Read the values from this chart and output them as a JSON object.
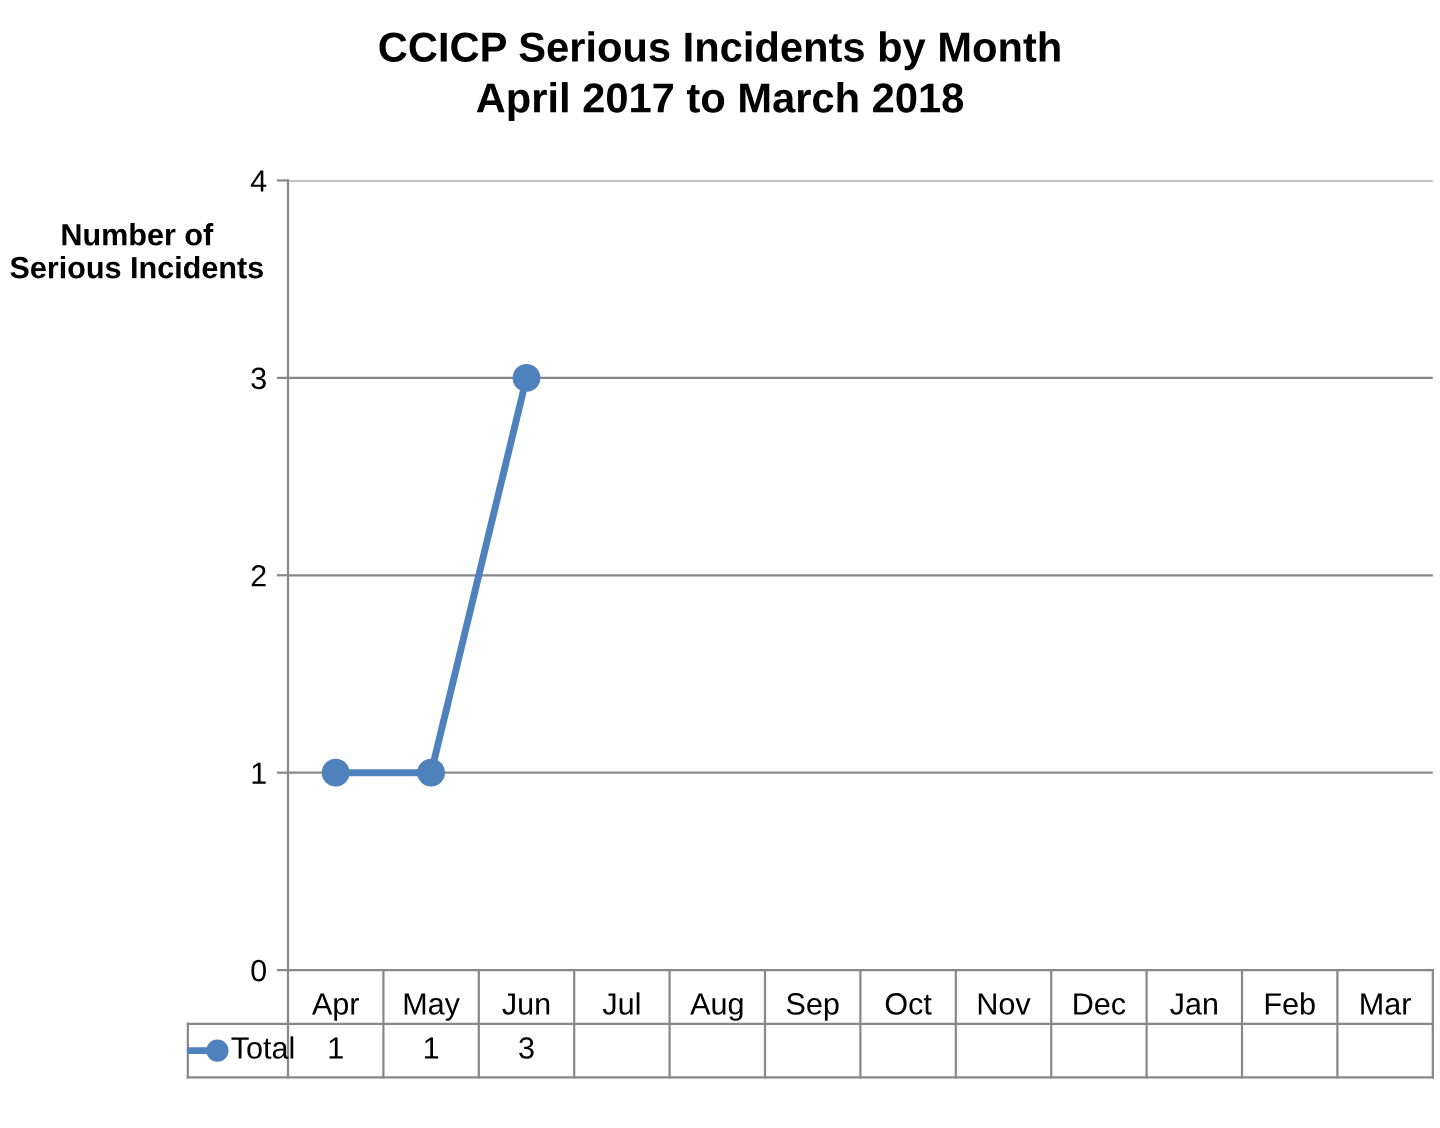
{
  "chart_data": {
    "type": "line",
    "title": "CCICP Serious Incidents by Month",
    "subtitle": "April 2017 to March 2018",
    "ylabel": "Number of\nSerious Incidents",
    "categories": [
      "Apr",
      "May",
      "Jun",
      "Jul",
      "Aug",
      "Sep",
      "Oct",
      "Nov",
      "Dec",
      "Jan",
      "Feb",
      "Mar"
    ],
    "series": [
      {
        "name": "Total",
        "color": "#4f81bd",
        "values": [
          1,
          1,
          3,
          null,
          null,
          null,
          null,
          null,
          null,
          null,
          null,
          null
        ]
      }
    ],
    "ylim": [
      0,
      4
    ],
    "yticks": [
      0,
      1,
      2,
      3,
      4
    ],
    "grid": "y",
    "marker": "circle",
    "line_style": "solid",
    "data_labels": true,
    "legend": "bottom left"
  }
}
